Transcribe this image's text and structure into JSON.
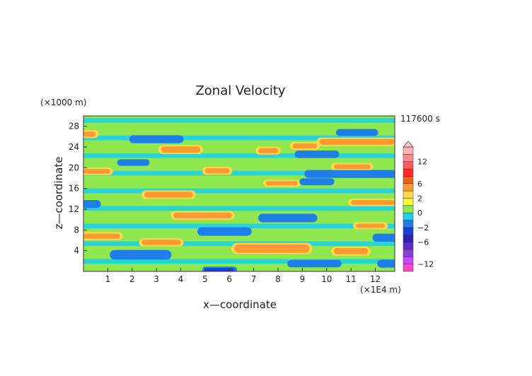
{
  "chart_data": {
    "type": "heatmap",
    "title": "Zonal Velocity",
    "xlabel": "x—coordinate",
    "ylabel": "z—coordinate",
    "x_unit": "(×1E4 m)",
    "y_unit": "(×1000 m)",
    "time_label": "117600 s",
    "xlim": [
      0,
      12.8
    ],
    "ylim": [
      0,
      30
    ],
    "x_ticks": [
      "1",
      "2",
      "3",
      "4",
      "5",
      "6",
      "7",
      "8",
      "9",
      "10",
      "11",
      "12"
    ],
    "y_ticks": [
      "4",
      "8",
      "12",
      "16",
      "20",
      "24",
      "28"
    ],
    "colorbar": {
      "levels": [
        -14,
        -12,
        -10,
        -8,
        -6,
        -4,
        -2,
        -1,
        0,
        1,
        2,
        4,
        6,
        8,
        10,
        12,
        14
      ],
      "colors": [
        "#ff44cc",
        "#cc44ff",
        "#8a3fd6",
        "#5a2ec8",
        "#2e1fb8",
        "#1a3fd8",
        "#1f7fe8",
        "#1fd0e8",
        "#8ee84e",
        "#ffff33",
        "#ffd84a",
        "#ff9a33",
        "#ff5a1a",
        "#ff2a2a",
        "#ff5a5a",
        "#ff8a8a",
        "#ffb3b3"
      ],
      "tick_labels": [
        "12",
        "6",
        "2",
        "0",
        "−2",
        "−6",
        "−12"
      ],
      "tick_values": [
        12,
        6,
        2,
        0,
        -2,
        -6,
        -12
      ]
    },
    "bands": [
      {
        "x0": 0.0,
        "x1": 0.5,
        "z": 26.5,
        "h": 1.0,
        "v": 4
      },
      {
        "x0": 2.0,
        "x1": 4.0,
        "z": 25.5,
        "h": 1.0,
        "v": -2
      },
      {
        "x0": 3.2,
        "x1": 4.8,
        "z": 23.5,
        "h": 1.2,
        "v": 4
      },
      {
        "x0": 7.2,
        "x1": 8.0,
        "z": 23.3,
        "h": 1.0,
        "v": 4
      },
      {
        "x0": 8.6,
        "x1": 9.6,
        "z": 24.2,
        "h": 1.0,
        "v": 4
      },
      {
        "x0": 9.7,
        "x1": 12.8,
        "z": 25.0,
        "h": 1.1,
        "v": 4
      },
      {
        "x0": 10.5,
        "x1": 12.0,
        "z": 26.8,
        "h": 0.8,
        "v": -2
      },
      {
        "x0": 8.8,
        "x1": 10.4,
        "z": 22.6,
        "h": 0.9,
        "v": -2
      },
      {
        "x0": 0.0,
        "x1": 1.1,
        "z": 19.3,
        "h": 0.9,
        "v": 4
      },
      {
        "x0": 5.0,
        "x1": 6.0,
        "z": 19.4,
        "h": 1.0,
        "v": 4
      },
      {
        "x0": 10.3,
        "x1": 11.8,
        "z": 20.2,
        "h": 0.9,
        "v": 4
      },
      {
        "x0": 9.2,
        "x1": 12.8,
        "z": 18.8,
        "h": 1.0,
        "v": -2
      },
      {
        "x0": 1.5,
        "x1": 2.6,
        "z": 21.0,
        "h": 0.7,
        "v": -2
      },
      {
        "x0": 2.5,
        "x1": 4.5,
        "z": 14.8,
        "h": 1.1,
        "v": 4
      },
      {
        "x0": 7.5,
        "x1": 8.8,
        "z": 17.0,
        "h": 0.8,
        "v": 4
      },
      {
        "x0": 9.0,
        "x1": 10.2,
        "z": 17.3,
        "h": 0.8,
        "v": -2
      },
      {
        "x0": 0.0,
        "x1": 0.6,
        "z": 13.0,
        "h": 1.0,
        "v": -2
      },
      {
        "x0": 3.7,
        "x1": 6.1,
        "z": 10.8,
        "h": 1.1,
        "v": 4
      },
      {
        "x0": 7.3,
        "x1": 9.5,
        "z": 10.3,
        "h": 1.1,
        "v": -2
      },
      {
        "x0": 11.0,
        "x1": 12.8,
        "z": 13.3,
        "h": 0.9,
        "v": 4
      },
      {
        "x0": 11.2,
        "x1": 12.4,
        "z": 8.8,
        "h": 0.8,
        "v": 4
      },
      {
        "x0": 0.0,
        "x1": 1.5,
        "z": 6.8,
        "h": 1.0,
        "v": 4
      },
      {
        "x0": 4.8,
        "x1": 6.8,
        "z": 7.7,
        "h": 1.1,
        "v": -2
      },
      {
        "x0": 2.4,
        "x1": 4.0,
        "z": 5.6,
        "h": 1.0,
        "v": 4
      },
      {
        "x0": 1.2,
        "x1": 3.5,
        "z": 3.2,
        "h": 1.3,
        "v": -2
      },
      {
        "x0": 6.2,
        "x1": 9.3,
        "z": 4.4,
        "h": 1.6,
        "v": 4
      },
      {
        "x0": 10.3,
        "x1": 11.7,
        "z": 3.9,
        "h": 1.2,
        "v": 4
      },
      {
        "x0": 8.5,
        "x1": 10.5,
        "z": 1.5,
        "h": 0.9,
        "v": -2
      },
      {
        "x0": 5.0,
        "x1": 6.2,
        "z": 0.3,
        "h": 0.7,
        "v": -4
      },
      {
        "x0": 12.0,
        "x1": 12.8,
        "z": 6.5,
        "h": 1.0,
        "v": -2
      },
      {
        "x0": 12.2,
        "x1": 12.8,
        "z": 1.5,
        "h": 1.0,
        "v": -2
      }
    ]
  }
}
